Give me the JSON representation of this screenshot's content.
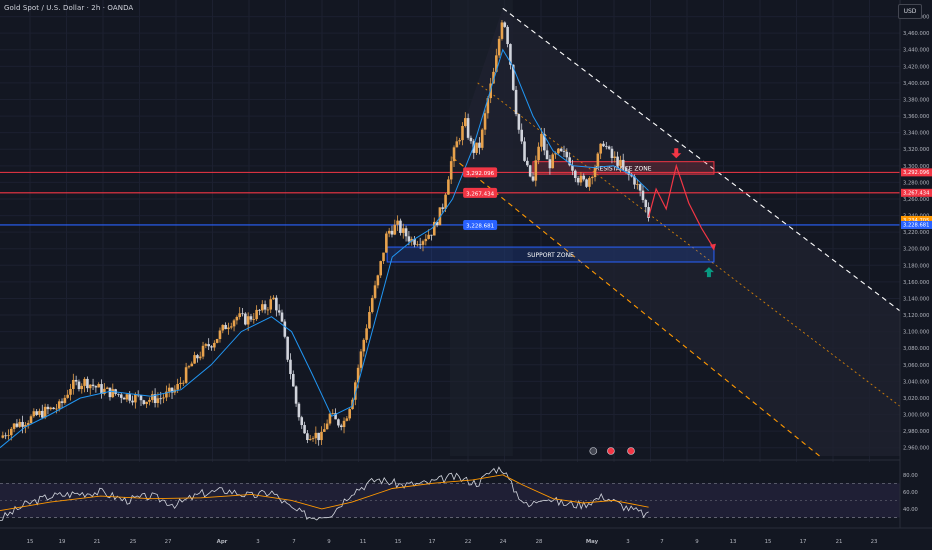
{
  "header": {
    "symbol": "Gold Spot / U.S. Dollar · 2h · OANDA",
    "currency": "USD"
  },
  "colors": {
    "background": "#131722",
    "grid": "#1c2030",
    "bull": "#e8a24c",
    "bear": "#d1d4dc",
    "ma": "#2196f3",
    "resistance_line": "#f23645",
    "support_line": "#2962ff",
    "channel_lower": "#ff9800",
    "projection": "#f23645",
    "rsi_line": "#d1d4dc",
    "rsi_signal": "#ff9800",
    "support_up_arrow": "#089981"
  },
  "price_axis": {
    "ticks": [
      "3,480.000",
      "3,460.000",
      "3,440.000",
      "3,420.000",
      "3,400.000",
      "3,380.000",
      "3,360.000",
      "3,340.000",
      "3,320.000",
      "3,300.000",
      "3,280.000",
      "3,260.000",
      "3,240.000",
      "3,220.000",
      "3,200.000",
      "3,180.000",
      "3,160.000",
      "3,140.000",
      "3,120.000",
      "3,100.000",
      "3,080.000",
      "3,060.000",
      "3,040.000",
      "3,020.000",
      "3,000.000",
      "2,980.000",
      "2,960.000"
    ],
    "labels": [
      {
        "name": "label-resistance-1",
        "text": "3,292.096",
        "value": 3292.096,
        "color": "#f23645"
      },
      {
        "name": "label-resistance-2",
        "text": "3,267.434",
        "value": 3267.434,
        "color": "#f23645"
      },
      {
        "name": "label-current-price",
        "text": "3,234.705",
        "sub": "01:41:08",
        "value": 3234.705,
        "color": "#ff9800"
      },
      {
        "name": "label-support",
        "text": "3,228.681",
        "value": 3228.681,
        "color": "#2962ff"
      }
    ]
  },
  "rsi_axis": {
    "ticks": [
      "80.00",
      "60.00",
      "40.00"
    ]
  },
  "time_axis": {
    "labels": [
      "15",
      "19",
      "21",
      "25",
      "27",
      "Apr",
      "3",
      "7",
      "9",
      "11",
      "15",
      "17",
      "22",
      "24",
      "28",
      "May",
      "3",
      "7",
      "9",
      "13",
      "15",
      "17",
      "21",
      "23"
    ]
  },
  "levels": [
    {
      "name": "resistance-line-1",
      "value": 3292.096,
      "color": "#f23645"
    },
    {
      "name": "resistance-line-2",
      "value": 3267.434,
      "color": "#f23645"
    },
    {
      "name": "support-line",
      "value": 3228.681,
      "color": "#2962ff"
    }
  ],
  "zones": [
    {
      "name": "resistance-zone",
      "label": "RESISTANCE ZONE",
      "top": 3305,
      "bottom": 3290,
      "t_start": 1.06,
      "t_end": 1.42,
      "color": "#f23645"
    },
    {
      "name": "support-zone",
      "label": "SUPPORT ZONE",
      "top": 3202,
      "bottom": 3184,
      "t_start": 0.77,
      "t_end": 1.42,
      "color": "#2962ff"
    }
  ],
  "tags": [
    {
      "name": "tag-resistance-1",
      "text": "3,292.096",
      "value": 3292.096,
      "t": 0.945,
      "color": "#f23645"
    },
    {
      "name": "tag-resistance-2",
      "text": "3,267.434",
      "value": 3267.434,
      "t": 0.945,
      "color": "#f23645"
    },
    {
      "name": "tag-support",
      "text": "3,228.681",
      "value": 3228.681,
      "t": 0.945,
      "color": "#2962ff"
    }
  ],
  "chart_data": {
    "type": "candlestick",
    "title": "Gold Spot / U.S. Dollar",
    "timeframe": "2h",
    "ylim": [
      2950,
      3500
    ],
    "rsi_ylim": [
      20,
      95
    ],
    "close_path": [
      [
        0.0,
        2972
      ],
      [
        0.03,
        2988
      ],
      [
        0.06,
        2995
      ],
      [
        0.09,
        3004
      ],
      [
        0.12,
        3010
      ],
      [
        0.14,
        3034
      ],
      [
        0.17,
        3040
      ],
      [
        0.2,
        3030
      ],
      [
        0.23,
        3025
      ],
      [
        0.26,
        3022
      ],
      [
        0.29,
        3018
      ],
      [
        0.32,
        3020
      ],
      [
        0.35,
        3030
      ],
      [
        0.38,
        3060
      ],
      [
        0.4,
        3075
      ],
      [
        0.43,
        3092
      ],
      [
        0.45,
        3108
      ],
      [
        0.47,
        3118
      ],
      [
        0.49,
        3114
      ],
      [
        0.51,
        3122
      ],
      [
        0.53,
        3130
      ],
      [
        0.545,
        3140
      ],
      [
        0.56,
        3110
      ],
      [
        0.575,
        3060
      ],
      [
        0.59,
        3010
      ],
      [
        0.605,
        2975
      ],
      [
        0.62,
        2978
      ],
      [
        0.64,
        2972
      ],
      [
        0.655,
        3000
      ],
      [
        0.67,
        2990
      ],
      [
        0.685,
        2992
      ],
      [
        0.7,
        3020
      ],
      [
        0.72,
        3080
      ],
      [
        0.74,
        3140
      ],
      [
        0.75,
        3160
      ],
      [
        0.77,
        3220
      ],
      [
        0.79,
        3228
      ],
      [
        0.8,
        3220
      ],
      [
        0.82,
        3210
      ],
      [
        0.84,
        3212
      ],
      [
        0.86,
        3222
      ],
      [
        0.88,
        3250
      ],
      [
        0.895,
        3300
      ],
      [
        0.91,
        3330
      ],
      [
        0.925,
        3352
      ],
      [
        0.94,
        3318
      ],
      [
        0.955,
        3325
      ],
      [
        0.97,
        3380
      ],
      [
        0.985,
        3420
      ],
      [
        1.0,
        3485
      ],
      [
        1.01,
        3450
      ],
      [
        1.02,
        3400
      ],
      [
        1.03,
        3350
      ],
      [
        1.045,
        3300
      ],
      [
        1.06,
        3280
      ],
      [
        1.075,
        3340
      ],
      [
        1.09,
        3300
      ],
      [
        1.11,
        3315
      ],
      [
        1.13,
        3310
      ],
      [
        1.15,
        3285
      ],
      [
        1.165,
        3278
      ],
      [
        1.185,
        3302
      ],
      [
        1.2,
        3330
      ],
      [
        1.215,
        3310
      ],
      [
        1.23,
        3305
      ],
      [
        1.245,
        3290
      ],
      [
        1.26,
        3285
      ],
      [
        1.275,
        3265
      ],
      [
        1.29,
        3240
      ]
    ],
    "ma_path": [
      [
        0.0,
        2960
      ],
      [
        0.05,
        2985
      ],
      [
        0.1,
        3000
      ],
      [
        0.16,
        3020
      ],
      [
        0.22,
        3028
      ],
      [
        0.3,
        3022
      ],
      [
        0.36,
        3030
      ],
      [
        0.42,
        3060
      ],
      [
        0.48,
        3100
      ],
      [
        0.54,
        3118
      ],
      [
        0.58,
        3100
      ],
      [
        0.62,
        3050
      ],
      [
        0.66,
        2998
      ],
      [
        0.7,
        3010
      ],
      [
        0.74,
        3100
      ],
      [
        0.78,
        3190
      ],
      [
        0.82,
        3210
      ],
      [
        0.86,
        3225
      ],
      [
        0.9,
        3260
      ],
      [
        0.94,
        3320
      ],
      [
        0.98,
        3400
      ],
      [
        1.0,
        3440
      ],
      [
        1.02,
        3420
      ],
      [
        1.06,
        3360
      ],
      [
        1.1,
        3318
      ],
      [
        1.14,
        3300
      ],
      [
        1.18,
        3298
      ],
      [
        1.22,
        3300
      ],
      [
        1.26,
        3288
      ],
      [
        1.29,
        3270
      ]
    ],
    "rsi_path": [
      [
        0.0,
        28
      ],
      [
        0.05,
        45
      ],
      [
        0.1,
        55
      ],
      [
        0.15,
        58
      ],
      [
        0.2,
        60
      ],
      [
        0.25,
        50
      ],
      [
        0.3,
        55
      ],
      [
        0.35,
        45
      ],
      [
        0.4,
        58
      ],
      [
        0.45,
        62
      ],
      [
        0.5,
        55
      ],
      [
        0.54,
        60
      ],
      [
        0.58,
        40
      ],
      [
        0.62,
        30
      ],
      [
        0.66,
        35
      ],
      [
        0.7,
        60
      ],
      [
        0.75,
        75
      ],
      [
        0.8,
        68
      ],
      [
        0.85,
        70
      ],
      [
        0.9,
        78
      ],
      [
        0.95,
        70
      ],
      [
        0.98,
        86
      ],
      [
        1.0,
        88
      ],
      [
        1.02,
        65
      ],
      [
        1.05,
        42
      ],
      [
        1.08,
        55
      ],
      [
        1.12,
        46
      ],
      [
        1.16,
        45
      ],
      [
        1.2,
        55
      ],
      [
        1.24,
        43
      ],
      [
        1.29,
        32
      ]
    ],
    "rsi_signal_path": [
      [
        0.0,
        38
      ],
      [
        0.1,
        48
      ],
      [
        0.2,
        55
      ],
      [
        0.3,
        52
      ],
      [
        0.4,
        53
      ],
      [
        0.5,
        57
      ],
      [
        0.58,
        50
      ],
      [
        0.64,
        40
      ],
      [
        0.7,
        48
      ],
      [
        0.78,
        64
      ],
      [
        0.86,
        70
      ],
      [
        0.94,
        74
      ],
      [
        1.0,
        80
      ],
      [
        1.04,
        68
      ],
      [
        1.1,
        52
      ],
      [
        1.16,
        47
      ],
      [
        1.22,
        50
      ],
      [
        1.29,
        42
      ]
    ],
    "channel": {
      "upper": [
        [
          1.0,
          3490
        ],
        [
          1.79,
          3125
        ]
      ],
      "middle": [
        [
          0.95,
          3400
        ],
        [
          1.79,
          3010
        ]
      ],
      "lower": [
        [
          0.9,
          3310
        ],
        [
          1.63,
          2950
        ]
      ]
    },
    "projection": [
      [
        1.29,
        3238
      ],
      [
        1.305,
        3272
      ],
      [
        1.325,
        3248
      ],
      [
        1.345,
        3300
      ],
      [
        1.37,
        3255
      ],
      [
        1.395,
        3225
      ],
      [
        1.42,
        3200
      ]
    ],
    "arrows": [
      {
        "name": "resistance-down-arrow",
        "t": 1.345,
        "value": 3314,
        "direction": "down"
      },
      {
        "name": "support-up-arrow",
        "t": 1.41,
        "value": 3173,
        "direction": "up"
      }
    ],
    "rsi_bands": [
      70,
      30
    ],
    "rsi_midline": 50
  }
}
